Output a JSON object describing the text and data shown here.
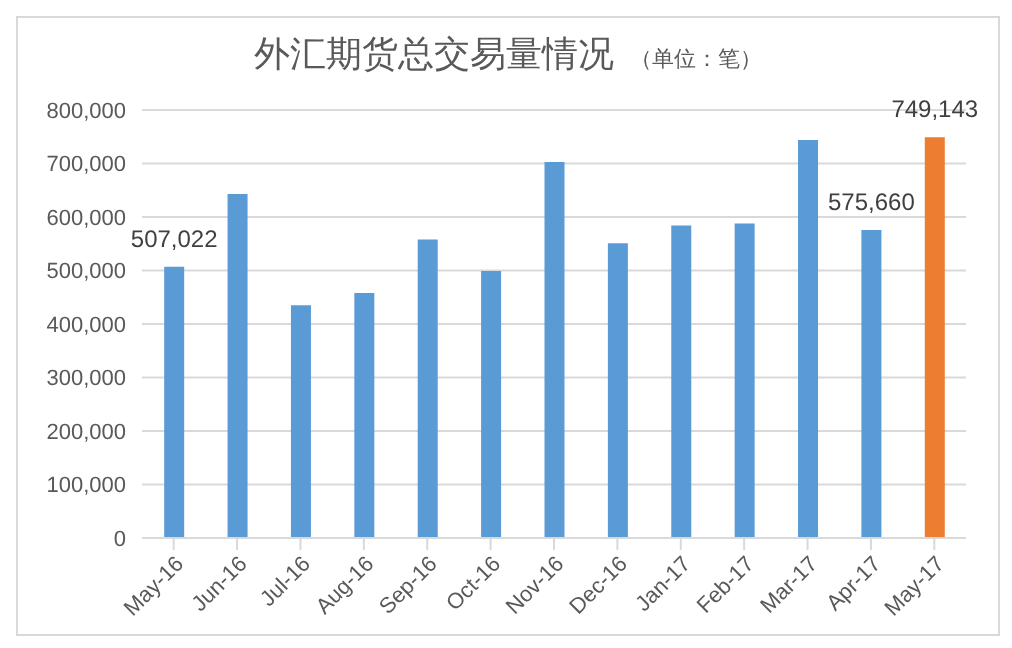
{
  "chart_data": {
    "type": "bar",
    "title": "外汇期货总交易量情况",
    "subtitle": "（单位：笔）",
    "categories": [
      "May-16",
      "Jun-16",
      "Jul-16",
      "Aug-16",
      "Sep-16",
      "Oct-16",
      "Nov-16",
      "Dec-16",
      "Jan-17",
      "Feb-17",
      "Mar-17",
      "Apr-17",
      "May-17"
    ],
    "values": [
      507022,
      643000,
      435000,
      458000,
      558000,
      499000,
      703000,
      551000,
      584000,
      588000,
      744000,
      575660,
      749143
    ],
    "colors": [
      "#5b9bd5",
      "#5b9bd5",
      "#5b9bd5",
      "#5b9bd5",
      "#5b9bd5",
      "#5b9bd5",
      "#5b9bd5",
      "#5b9bd5",
      "#5b9bd5",
      "#5b9bd5",
      "#5b9bd5",
      "#5b9bd5",
      "#ed7d31"
    ],
    "value_labels": [
      "507,022",
      null,
      null,
      null,
      null,
      null,
      null,
      null,
      null,
      null,
      null,
      "575,660",
      "749,143"
    ],
    "ylim": [
      0,
      800000
    ],
    "yticks": [
      0,
      {
        "value": 100000,
        "label": "100,000"
      },
      {
        "value": 200000,
        "label": "200,000"
      },
      {
        "value": 300000,
        "label": "300,000"
      },
      {
        "value": 400000,
        "label": "400,000"
      },
      {
        "value": 500000,
        "label": "500,000"
      },
      {
        "value": 600000,
        "label": "600,000"
      },
      {
        "value": 700000,
        "label": "700,000"
      },
      {
        "value": 800000,
        "label": "800,000"
      }
    ],
    "grid": "y"
  }
}
